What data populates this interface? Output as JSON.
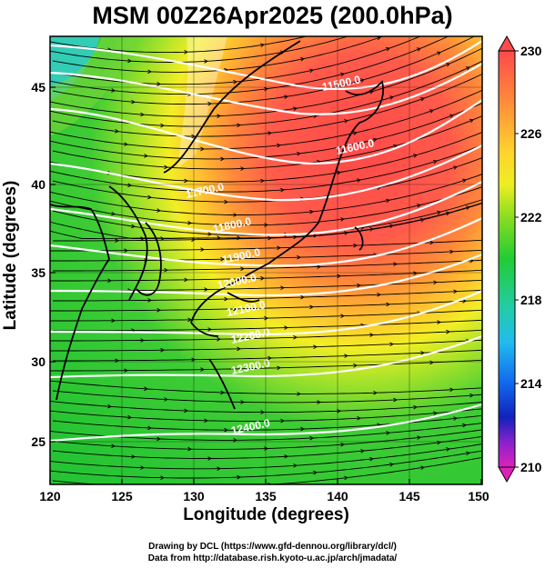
{
  "title": "MSM 00Z26Apr2025 (200.0hPa)",
  "x_label": "Longitude (degrees)",
  "y_label": "Latitude  (degrees)",
  "x_ticks": [
    "120",
    "125",
    "130",
    "135",
    "140",
    "145",
    "150"
  ],
  "y_ticks": [
    "25",
    "30",
    "35",
    "40",
    "45"
  ],
  "colorbar_ticks": [
    "230",
    "226",
    "222",
    "218",
    "214",
    "210"
  ],
  "contour_labels": [
    "11500.0",
    "11600.0",
    "11700.0",
    "11800.0",
    "11900.0",
    "12000.0",
    "12100.0",
    "12200.0",
    "12300.0",
    "12400.0"
  ],
  "credit_line1": "Drawing by DCL (https://www.gfd-dennou.org/library/dcl/)",
  "credit_line2": "Data from http://database.rish.kyoto-u.ac.jp/arch/jmadata/",
  "colors": {
    "hot": "#ff5050",
    "orange": "#ff9933",
    "yellow": "#ffee22",
    "green": "#33cc33",
    "cyan": "#33cccc",
    "blue": "#1144dd",
    "magenta": "#cc22cc"
  }
}
